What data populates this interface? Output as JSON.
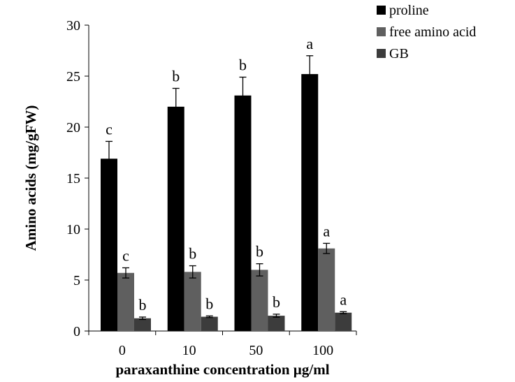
{
  "chart_data": {
    "type": "bar",
    "title": "",
    "xlabel": "paraxanthine concentration  µg/ml",
    "ylabel": "Amino acids (mg/gFW)",
    "ylim": [
      0,
      30
    ],
    "yticks": [
      0,
      5,
      10,
      15,
      20,
      25,
      30
    ],
    "categories": [
      "0",
      "10",
      "50",
      "100"
    ],
    "series": [
      {
        "name": "proline",
        "color": "#000000",
        "values": [
          16.9,
          22.0,
          23.1,
          25.2
        ],
        "errors": [
          1.7,
          1.8,
          1.8,
          1.8
        ],
        "letters": [
          "c",
          "b",
          "b",
          "a"
        ]
      },
      {
        "name": "free amino acid",
        "color": "#5f5f5f",
        "values": [
          5.7,
          5.8,
          6.0,
          8.1
        ],
        "errors": [
          0.5,
          0.6,
          0.6,
          0.5
        ],
        "letters": [
          "c",
          "b",
          "b",
          "a"
        ]
      },
      {
        "name": "GB",
        "color": "#3c3c3c",
        "values": [
          1.25,
          1.4,
          1.5,
          1.8
        ],
        "errors": [
          0.12,
          0.08,
          0.15,
          0.1
        ],
        "letters": [
          "b",
          "b",
          "b",
          "a"
        ]
      }
    ],
    "legend": "top-right",
    "grid": false
  }
}
